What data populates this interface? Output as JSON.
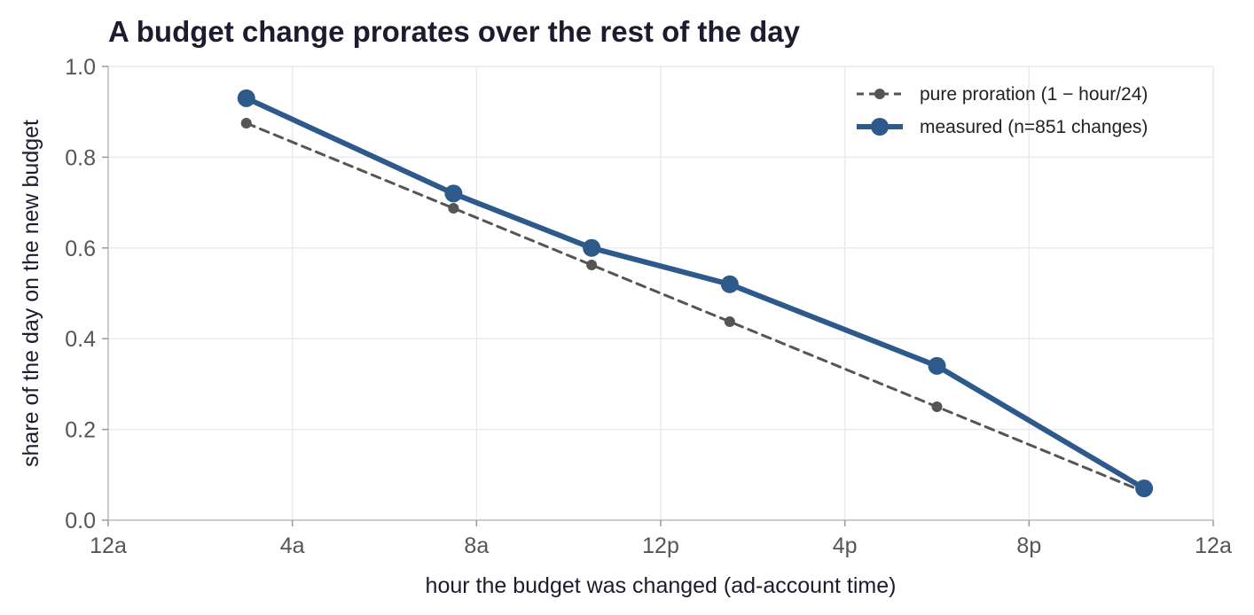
{
  "chart_data": {
    "type": "line",
    "title": "A budget change prorates over the rest of the day",
    "xlabel": "hour the budget was changed (ad-account time)",
    "ylabel": "share of the day on the new budget",
    "xlim": [
      0,
      24
    ],
    "ylim": [
      0,
      1.0
    ],
    "x_ticks": [
      {
        "value": 0,
        "label": "12a"
      },
      {
        "value": 4,
        "label": "4a"
      },
      {
        "value": 8,
        "label": "8a"
      },
      {
        "value": 12,
        "label": "12p"
      },
      {
        "value": 16,
        "label": "4p"
      },
      {
        "value": 20,
        "label": "8p"
      },
      {
        "value": 24,
        "label": "12a"
      }
    ],
    "y_ticks": [
      {
        "value": 0.0,
        "label": "0.0"
      },
      {
        "value": 0.2,
        "label": "0.2"
      },
      {
        "value": 0.4,
        "label": "0.4"
      },
      {
        "value": 0.6,
        "label": "0.6"
      },
      {
        "value": 0.8,
        "label": "0.8"
      },
      {
        "value": 1.0,
        "label": "1.0"
      }
    ],
    "grid": true,
    "legend_position": "top-right",
    "series": [
      {
        "name": "pure proration (1 − hour/24)",
        "style": "dashed",
        "color": "#555555",
        "x": [
          3,
          7.5,
          10.5,
          13.5,
          18,
          22.5
        ],
        "y": [
          0.875,
          0.6875,
          0.5625,
          0.4375,
          0.25,
          0.0625
        ]
      },
      {
        "name": "measured (n=851 changes)",
        "style": "solid",
        "color": "#2d5a8a",
        "x": [
          3,
          7.5,
          10.5,
          13.5,
          18,
          22.5
        ],
        "y": [
          0.93,
          0.72,
          0.6,
          0.52,
          0.34,
          0.07
        ]
      }
    ]
  }
}
